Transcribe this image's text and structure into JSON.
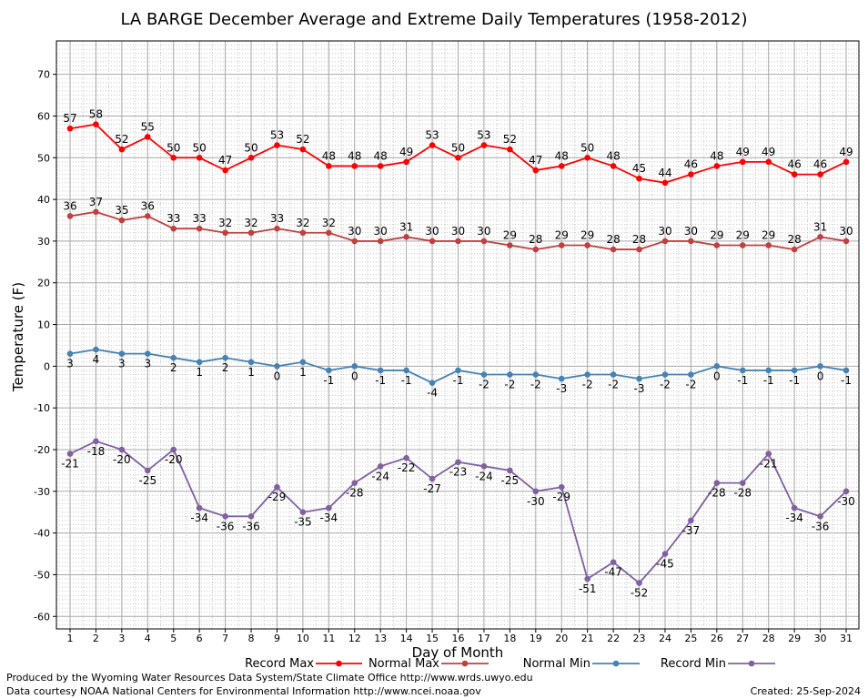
{
  "chart_data": {
    "type": "line",
    "title": "LA BARGE December Average and Extreme Daily Temperatures (1958-2012)",
    "xlabel": "Day of Month",
    "ylabel": "Temperature (F)",
    "ylim": [
      -63,
      78
    ],
    "yticks": [
      -60,
      -50,
      -40,
      -30,
      -20,
      -10,
      0,
      10,
      20,
      30,
      40,
      50,
      60,
      70
    ],
    "x": [
      1,
      2,
      3,
      4,
      5,
      6,
      7,
      8,
      9,
      10,
      11,
      12,
      13,
      14,
      15,
      16,
      17,
      18,
      19,
      20,
      21,
      22,
      23,
      24,
      25,
      26,
      27,
      28,
      29,
      30,
      31
    ],
    "grid": true,
    "legend_placement": "bottom",
    "series": [
      {
        "name": "Record Max",
        "color": "#ff0000",
        "label_position": "above",
        "values": [
          57,
          58,
          52,
          55,
          50,
          50,
          47,
          50,
          53,
          52,
          48,
          48,
          48,
          49,
          53,
          50,
          53,
          52,
          47,
          48,
          50,
          48,
          45,
          44,
          46,
          48,
          49,
          49,
          46,
          46,
          49
        ]
      },
      {
        "name": "Normal Max",
        "color": "#c04040",
        "label_position": "above",
        "values": [
          36,
          37,
          35,
          36,
          33,
          33,
          32,
          32,
          33,
          32,
          32,
          30,
          30,
          31,
          30,
          30,
          30,
          29,
          28,
          29,
          29,
          28,
          28,
          30,
          30,
          29,
          29,
          29,
          28,
          31,
          30
        ]
      },
      {
        "name": "Normal Min",
        "color": "#4682b4",
        "label_position": "below",
        "values": [
          3,
          4,
          3,
          3,
          2,
          1,
          2,
          1,
          0,
          1,
          -1,
          0,
          -1,
          -1,
          -4,
          -1,
          -2,
          -2,
          -2,
          -3,
          -2,
          -2,
          -3,
          -2,
          -2,
          0,
          -1,
          -1,
          -1,
          0,
          -1
        ]
      },
      {
        "name": "Record Min",
        "color": "#8060a0",
        "label_position": "below",
        "values": [
          -21,
          -18,
          -20,
          -25,
          -20,
          -34,
          -36,
          -36,
          -29,
          -35,
          -34,
          -28,
          -24,
          -22,
          -27,
          -23,
          -24,
          -25,
          -30,
          -29,
          -51,
          -47,
          -52,
          -45,
          -37,
          -28,
          -28,
          -21,
          -34,
          -36,
          -30
        ]
      }
    ]
  },
  "footer": {
    "produced_by": "Produced by the Wyoming Water Resources Data System/State Climate Office http://www.wrds.uwyo.edu",
    "data_courtesy": "Data courtesy NOAA National Centers for Environmental Information http://www.ncei.noaa.gov",
    "created": "Created:  25-Sep-2024"
  }
}
